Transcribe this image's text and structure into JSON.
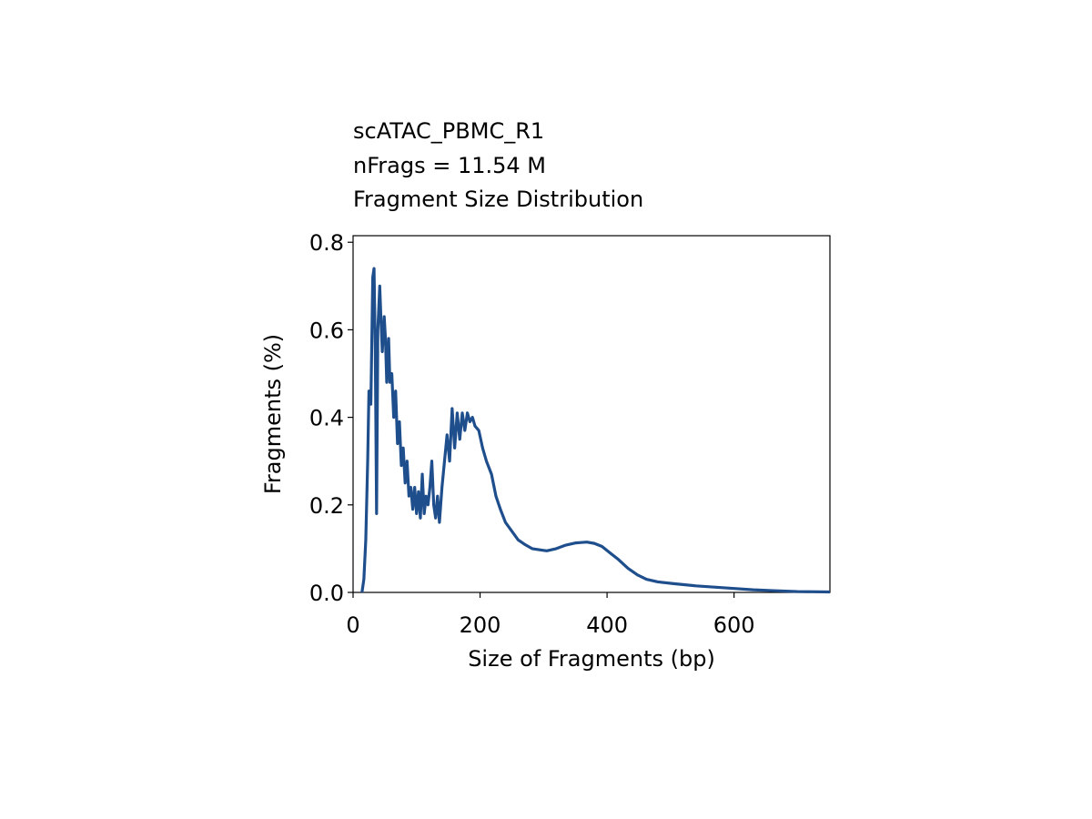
{
  "chart_data": {
    "type": "line",
    "title": [
      "scATAC_PBMC_R1",
      "nFrags = 11.54 M",
      "Fragment Size Distribution"
    ],
    "x_label": "Size of Fragments (bp)",
    "y_label": "Fragments (%)",
    "xlim": [
      0,
      751
    ],
    "ylim": [
      0,
      0.815
    ],
    "xticks": [
      0,
      200,
      400,
      600
    ],
    "yticks": [
      {
        "value": 0,
        "label": "0.0"
      },
      0.2,
      0.4,
      0.6,
      0.8
    ],
    "grid": false,
    "x": [
      14,
      17,
      20,
      23,
      25,
      28,
      31,
      33,
      35,
      37,
      39,
      42,
      44,
      46,
      49,
      51,
      53,
      56,
      58,
      61,
      64,
      67,
      70,
      73,
      76,
      79,
      82,
      85,
      88,
      91,
      94,
      97,
      100,
      103,
      106,
      109,
      112,
      115,
      118,
      121,
      124,
      127,
      130,
      133,
      136,
      140,
      144,
      148,
      152,
      156,
      160,
      164,
      168,
      172,
      176,
      180,
      184,
      188,
      192,
      198,
      204,
      210,
      218,
      225,
      232,
      240,
      250,
      260,
      270,
      282,
      295,
      305,
      320,
      335,
      350,
      368,
      380,
      392,
      405,
      418,
      433,
      448,
      462,
      480,
      505,
      540,
      590,
      630,
      662,
      700,
      751
    ],
    "series": [
      {
        "name": "Fragments",
        "color": "#1f4e8c",
        "values": [
          0,
          0.03,
          0.12,
          0.3,
          0.46,
          0.43,
          0.72,
          0.74,
          0.55,
          0.18,
          0.6,
          0.7,
          0.62,
          0.55,
          0.63,
          0.58,
          0.48,
          0.58,
          0.48,
          0.5,
          0.4,
          0.46,
          0.34,
          0.39,
          0.29,
          0.33,
          0.25,
          0.3,
          0.22,
          0.24,
          0.19,
          0.24,
          0.18,
          0.23,
          0.17,
          0.27,
          0.18,
          0.22,
          0.2,
          0.24,
          0.3,
          0.2,
          0.17,
          0.22,
          0.16,
          0.24,
          0.3,
          0.36,
          0.3,
          0.42,
          0.33,
          0.41,
          0.35,
          0.41,
          0.37,
          0.41,
          0.39,
          0.4,
          0.38,
          0.37,
          0.33,
          0.3,
          0.27,
          0.22,
          0.19,
          0.16,
          0.14,
          0.12,
          0.11,
          0.1,
          0.097,
          0.095,
          0.1,
          0.108,
          0.113,
          0.115,
          0.112,
          0.105,
          0.09,
          0.075,
          0.055,
          0.04,
          0.03,
          0.024,
          0.02,
          0.015,
          0.01,
          0.006,
          0.004,
          0.002,
          0.001
        ]
      }
    ]
  }
}
